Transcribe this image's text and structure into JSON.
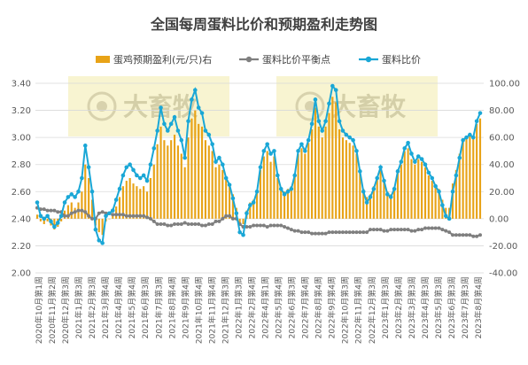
{
  "chart_data": {
    "type": "bar+line",
    "title": "全国每周蛋料比价和预期盈利走势图",
    "watermark": "大畜牧",
    "legend": [
      {
        "key": "profit",
        "label": "蛋鸡预期盈利(元/只)右",
        "color": "#E8A317",
        "kind": "bar"
      },
      {
        "key": "breakeven",
        "label": "蛋料比价平衡点",
        "color": "#7F7F7F",
        "kind": "line"
      },
      {
        "key": "ratio",
        "label": "蛋料比价",
        "color": "#1AA7D6",
        "kind": "line"
      }
    ],
    "y_left": {
      "min": 2.0,
      "max": 3.4,
      "ticks": [
        "2.00",
        "2.20",
        "2.40",
        "2.60",
        "2.80",
        "3.00",
        "3.20",
        "3.40"
      ]
    },
    "y_right": {
      "min": -40,
      "max": 100,
      "ticks": [
        "-40.00",
        "-20.00",
        "0.00",
        "20.00",
        "40.00",
        "60.00",
        "80.00",
        "100.00"
      ]
    },
    "x_labels": [
      "2020年10月第1周",
      "2020年11月第2周",
      "2020年12月第3周",
      "2021年1月第3周",
      "2021年2月第3周",
      "2021年3月第4周",
      "2021年4月第4周",
      "2021年5月第4周",
      "2021年6月第3周",
      "2021年7月第3周",
      "2021年8月第4周",
      "2021年9月第4周",
      "2021年10月第4周",
      "2021年11月第4周",
      "2021年12月第3周",
      "2022年1月第3周",
      "2022年2月第4周",
      "2022年4月第1周",
      "2022年5月第4周",
      "2022年6月第3周",
      "2022年7月第4周",
      "2022年8月第4周",
      "2022年9月第4周",
      "2022年10月第3周",
      "2022年11月第4周",
      "2022年12月第3周",
      "2023年1月第3周",
      "2023年2月第4周",
      "2023年3月第3周",
      "2023年4月第3周",
      "2023年5月第3周",
      "2023年6月第3周",
      "2023年7月第3周",
      "2023年8月第4周"
    ],
    "series": [
      {
        "name": "蛋料比价",
        "axis": "left",
        "values": [
          2.52,
          2.42,
          2.4,
          2.42,
          2.38,
          2.34,
          2.37,
          2.42,
          2.52,
          2.56,
          2.58,
          2.56,
          2.6,
          2.7,
          2.94,
          2.78,
          2.6,
          2.32,
          2.24,
          2.22,
          2.42,
          2.44,
          2.46,
          2.54,
          2.62,
          2.72,
          2.78,
          2.8,
          2.76,
          2.72,
          2.7,
          2.72,
          2.68,
          2.8,
          2.92,
          3.05,
          3.22,
          3.1,
          3.05,
          3.1,
          3.15,
          3.05,
          2.98,
          2.85,
          3.12,
          3.28,
          3.35,
          3.22,
          3.18,
          3.05,
          3.02,
          2.95,
          2.82,
          2.85,
          2.8,
          2.7,
          2.65,
          2.55,
          2.44,
          2.3,
          2.28,
          2.44,
          2.5,
          2.52,
          2.6,
          2.78,
          2.9,
          2.95,
          2.88,
          2.9,
          2.72,
          2.62,
          2.58,
          2.6,
          2.62,
          2.72,
          2.9,
          2.95,
          2.9,
          2.98,
          3.1,
          3.28,
          3.12,
          3.05,
          3.12,
          3.25,
          3.38,
          3.35,
          3.12,
          3.05,
          3.02,
          3.0,
          2.98,
          2.9,
          2.75,
          2.6,
          2.52,
          2.56,
          2.62,
          2.7,
          2.78,
          2.68,
          2.58,
          2.56,
          2.62,
          2.75,
          2.82,
          2.92,
          2.96,
          2.88,
          2.82,
          2.86,
          2.84,
          2.8,
          2.74,
          2.7,
          2.64,
          2.6,
          2.5,
          2.42,
          2.4,
          2.6,
          2.72,
          2.85,
          2.98,
          3.0,
          3.02,
          3.0,
          3.12,
          3.18
        ]
      },
      {
        "name": "蛋料比价平衡点",
        "axis": "left",
        "values": [
          2.48,
          2.47,
          2.47,
          2.46,
          2.46,
          2.46,
          2.45,
          2.45,
          2.42,
          2.42,
          2.44,
          2.45,
          2.46,
          2.46,
          2.45,
          2.42,
          2.4,
          2.4,
          2.44,
          2.45,
          2.44,
          2.44,
          2.43,
          2.43,
          2.43,
          2.43,
          2.42,
          2.42,
          2.42,
          2.42,
          2.42,
          2.42,
          2.41,
          2.4,
          2.38,
          2.36,
          2.36,
          2.36,
          2.35,
          2.35,
          2.36,
          2.36,
          2.36,
          2.37,
          2.36,
          2.36,
          2.36,
          2.36,
          2.35,
          2.35,
          2.36,
          2.36,
          2.38,
          2.38,
          2.4,
          2.42,
          2.42,
          2.4,
          2.4,
          2.36,
          2.34,
          2.34,
          2.34,
          2.35,
          2.35,
          2.35,
          2.35,
          2.34,
          2.35,
          2.35,
          2.35,
          2.35,
          2.34,
          2.33,
          2.32,
          2.31,
          2.31,
          2.3,
          2.3,
          2.3,
          2.29,
          2.29,
          2.29,
          2.29,
          2.29,
          2.3,
          2.3,
          2.3,
          2.3,
          2.3,
          2.3,
          2.3,
          2.3,
          2.3,
          2.3,
          2.3,
          2.3,
          2.32,
          2.32,
          2.32,
          2.32,
          2.31,
          2.31,
          2.32,
          2.32,
          2.32,
          2.32,
          2.32,
          2.32,
          2.31,
          2.31,
          2.32,
          2.32,
          2.33,
          2.33,
          2.33,
          2.33,
          2.33,
          2.32,
          2.31,
          2.3,
          2.28,
          2.28,
          2.28,
          2.28,
          2.28,
          2.28,
          2.27,
          2.27,
          2.28
        ]
      },
      {
        "name": "蛋鸡预期盈利(元/只)右",
        "axis": "right",
        "values": [
          3,
          -2,
          -4,
          -2,
          -5,
          -8,
          -6,
          -2,
          6,
          10,
          12,
          8,
          12,
          20,
          40,
          30,
          14,
          -5,
          -10,
          -12,
          -2,
          0,
          2,
          9,
          16,
          24,
          28,
          30,
          26,
          24,
          22,
          24,
          20,
          30,
          40,
          55,
          68,
          58,
          54,
          58,
          62,
          54,
          48,
          38,
          60,
          74,
          80,
          70,
          68,
          58,
          54,
          50,
          38,
          40,
          36,
          30,
          26,
          18,
          8,
          -4,
          -4,
          6,
          12,
          14,
          20,
          36,
          46,
          50,
          42,
          46,
          30,
          22,
          20,
          22,
          24,
          32,
          48,
          52,
          48,
          56,
          66,
          82,
          68,
          60,
          68,
          78,
          90,
          86,
          66,
          60,
          58,
          56,
          54,
          48,
          34,
          22,
          16,
          18,
          24,
          30,
          38,
          28,
          20,
          18,
          22,
          35,
          40,
          50,
          52,
          44,
          40,
          44,
          42,
          38,
          32,
          28,
          24,
          22,
          14,
          8,
          8,
          26,
          36,
          48,
          58,
          60,
          62,
          60,
          70,
          74
        ]
      }
    ]
  }
}
